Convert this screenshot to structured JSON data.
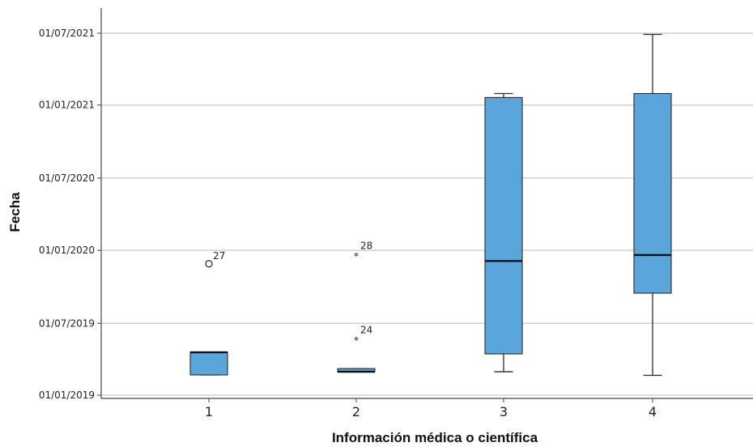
{
  "chart_data": {
    "type": "boxplot",
    "xlabel": "Información médica o científica",
    "ylabel": "Fecha",
    "y_axis": {
      "scale": "date",
      "ylim": [
        "2018-12-25",
        "2021-08-20"
      ],
      "ticks": [
        {
          "value": "2019-01-01",
          "label": "01/01/2019"
        },
        {
          "value": "2019-07-01",
          "label": "01/07/2019"
        },
        {
          "value": "2020-01-01",
          "label": "01/01/2020"
        },
        {
          "value": "2020-07-01",
          "label": "01/07/2020"
        },
        {
          "value": "2021-01-01",
          "label": "01/01/2021"
        },
        {
          "value": "2021-07-01",
          "label": "01/07/2021"
        }
      ],
      "grid": true
    },
    "categories": [
      "1",
      "2",
      "3",
      "4"
    ],
    "boxes": [
      {
        "category": "1",
        "whisker_low": "2019-02-21",
        "q1": "2019-02-21",
        "median": "2019-04-19",
        "q3": "2019-04-19",
        "whisker_high": "2019-04-19",
        "outliers": [
          {
            "value": "2019-11-28",
            "label": "27",
            "marker": "circle"
          }
        ]
      },
      {
        "category": "2",
        "whisker_low": "2019-03-01",
        "q1": "2019-03-01",
        "median": "2019-03-01",
        "q3": "2019-03-09",
        "whisker_high": "2019-03-09",
        "outliers": [
          {
            "value": "2019-12-23",
            "label": "28",
            "marker": "star"
          },
          {
            "value": "2019-05-25",
            "label": "24",
            "marker": "star"
          }
        ]
      },
      {
        "category": "3",
        "whisker_low": "2019-03-01",
        "q1": "2019-04-15",
        "median": "2019-12-05",
        "q3": "2021-01-20",
        "whisker_high": "2021-01-30"
      },
      {
        "category": "4",
        "whisker_low": "2019-02-20",
        "q1": "2019-09-15",
        "median": "2019-12-20",
        "q3": "2021-01-30",
        "whisker_high": "2021-06-28"
      }
    ],
    "colors": {
      "box_fill": "#5aa5dc",
      "box_stroke": "#2b2b2b",
      "grid": "#c8c8c8",
      "axis": "#444444"
    }
  }
}
